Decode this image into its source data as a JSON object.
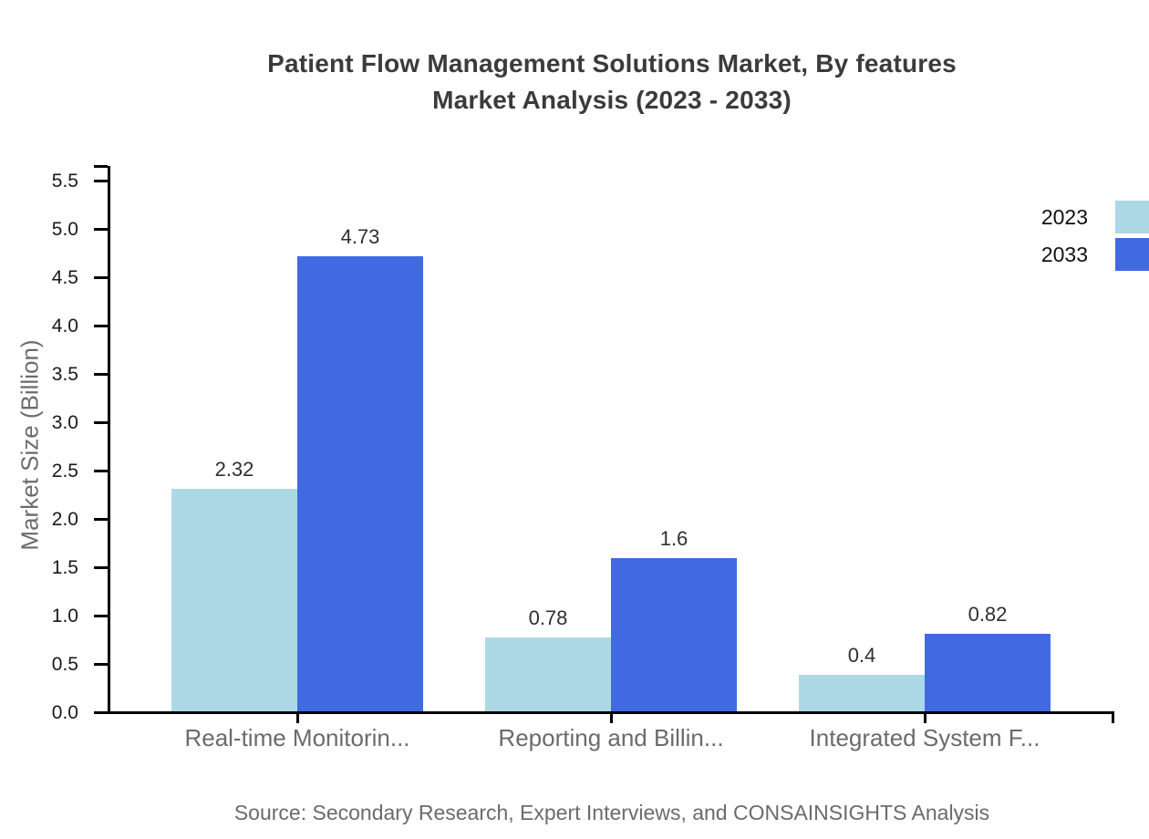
{
  "chart_data": {
    "type": "bar",
    "title_line1": "Patient Flow Management Solutions Market, By features",
    "title_line2": "Market Analysis (2023 - 2033)",
    "ylabel": "Market Size (Billion)",
    "categories": [
      "Real-time Monitorin...",
      "Reporting and Billin...",
      "Integrated System F..."
    ],
    "series": [
      {
        "name": "2023",
        "color": "#add8e6",
        "values": [
          2.32,
          0.78,
          0.4
        ]
      },
      {
        "name": "2033",
        "color": "#4169e1",
        "values": [
          4.73,
          1.6,
          0.82
        ]
      }
    ],
    "yticks": [
      "0.0",
      "0.5",
      "1.0",
      "1.5",
      "2.0",
      "2.5",
      "3.0",
      "3.5",
      "4.0",
      "4.5",
      "5.0",
      "5.5"
    ],
    "ylim": [
      0,
      5.66
    ],
    "grid": false,
    "legend_position": "top-right",
    "legend_entries": [
      "2023",
      "2033"
    ],
    "source": "Source: Secondary Research, Expert Interviews, and CONSAINSIGHTS Analysis",
    "colors": {
      "series_2023": "#add8e6",
      "series_2033": "#4169e1",
      "axis": "#000000",
      "title_text": "#3b3b3b",
      "tick_text": "#1a1a1a",
      "muted_text": "#6b6b6b",
      "value_text": "#2f2f2f"
    }
  }
}
